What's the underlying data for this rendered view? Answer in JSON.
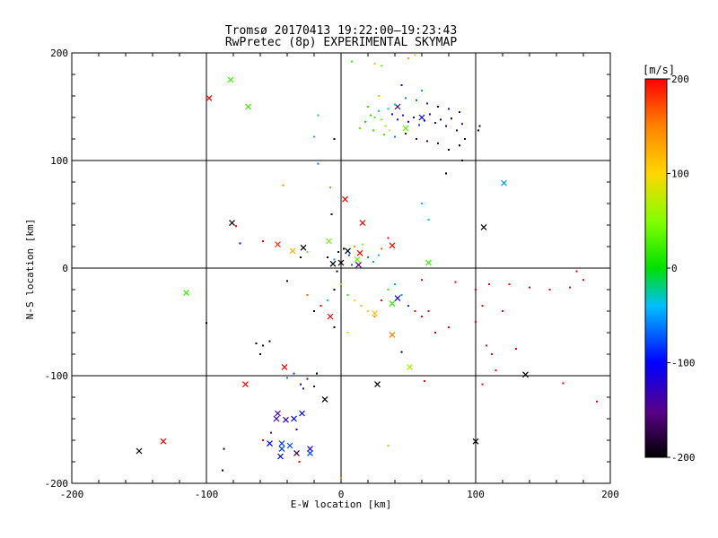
{
  "header": {
    "title": "Tromsø 20170413 19:22:00–19:23:43",
    "subtitle": "RwPretec (8p) EXPERIMENTAL SKYMAP"
  },
  "colorbar": {
    "unit_label": "[m/s]",
    "ticks": [
      200,
      100,
      0,
      -100,
      -200
    ],
    "range": [
      -200,
      200
    ]
  },
  "chart_data": {
    "type": "scatter",
    "title": "RwPretec (8p) EXPERIMENTAL SKYMAP",
    "xlabel": "E-W location [km]",
    "ylabel": "N-S location [km]",
    "xlim": [
      -200,
      200
    ],
    "ylim": [
      -200,
      200
    ],
    "xticks": [
      -200,
      -100,
      0,
      100,
      200
    ],
    "yticks": [
      -200,
      -100,
      0,
      100,
      200
    ],
    "grid": true,
    "color_scale": "rainbow, velocity [m/s] from -200 (black) through blue, cyan, green, yellow to 200 (red)",
    "series": [
      {
        "marker": "x",
        "points": [
          [
            -98,
            158,
            200
          ],
          [
            -82,
            175,
            20
          ],
          [
            -69,
            150,
            20
          ],
          [
            121,
            79,
            -50
          ],
          [
            -81,
            42,
            -200
          ],
          [
            -47,
            22,
            180
          ],
          [
            -36,
            16,
            120
          ],
          [
            -28,
            19,
            -200
          ],
          [
            3,
            64,
            200
          ],
          [
            16,
            42,
            200
          ],
          [
            38,
            21,
            200
          ],
          [
            -9,
            25,
            40
          ],
          [
            5,
            16,
            -200
          ],
          [
            14,
            14,
            200
          ],
          [
            12,
            8,
            40
          ],
          [
            0,
            5,
            -200
          ],
          [
            -6,
            4,
            -200
          ],
          [
            13,
            3,
            -160
          ],
          [
            65,
            5,
            20
          ],
          [
            106,
            38,
            -200
          ],
          [
            -115,
            -23,
            20
          ],
          [
            42,
            -28,
            -120
          ],
          [
            38,
            -33,
            20
          ],
          [
            -8,
            -45,
            200
          ],
          [
            25,
            -42,
            110
          ],
          [
            38,
            -62,
            150
          ],
          [
            51,
            -92,
            60
          ],
          [
            -42,
            -92,
            200
          ],
          [
            -71,
            -108,
            200
          ],
          [
            -12,
            -122,
            -200
          ],
          [
            27,
            -108,
            -200
          ],
          [
            137,
            -99,
            -200
          ],
          [
            -132,
            -161,
            200
          ],
          [
            -150,
            -170,
            -200
          ],
          [
            100,
            -161,
            -200
          ],
          [
            -47,
            -135,
            -140
          ],
          [
            -41,
            -141,
            -130
          ],
          [
            -48,
            -140,
            -140
          ],
          [
            -35,
            -140,
            -100
          ],
          [
            -29,
            -135,
            -100
          ],
          [
            -53,
            -163,
            -100
          ],
          [
            -44,
            -163,
            -80
          ],
          [
            -38,
            -165,
            -80
          ],
          [
            -44,
            -168,
            -80
          ],
          [
            -45,
            -175,
            -100
          ],
          [
            -33,
            -172,
            -170
          ],
          [
            -23,
            -168,
            -120
          ],
          [
            -23,
            -172,
            -80
          ],
          [
            42,
            150,
            -160
          ],
          [
            48,
            130,
            30
          ],
          [
            60,
            140,
            -100
          ]
        ]
      },
      {
        "marker": "dot",
        "points": [
          [
            8,
            192,
            20
          ],
          [
            25,
            190,
            120
          ],
          [
            50,
            195,
            130
          ],
          [
            55,
            198,
            110
          ],
          [
            30,
            188,
            40
          ],
          [
            45,
            170,
            -110
          ],
          [
            60,
            165,
            -50
          ],
          [
            28,
            160,
            60
          ],
          [
            20,
            150,
            20
          ],
          [
            25,
            140,
            30
          ],
          [
            30,
            138,
            40
          ],
          [
            33,
            132,
            50
          ],
          [
            36,
            128,
            90
          ],
          [
            38,
            143,
            -100
          ],
          [
            42,
            138,
            -110
          ],
          [
            46,
            142,
            -140
          ],
          [
            50,
            136,
            -120
          ],
          [
            54,
            140,
            -110
          ],
          [
            58,
            133,
            -80
          ],
          [
            62,
            137,
            -100
          ],
          [
            66,
            143,
            -120
          ],
          [
            70,
            135,
            -160
          ],
          [
            74,
            138,
            -180
          ],
          [
            78,
            132,
            -170
          ],
          [
            82,
            139,
            -190
          ],
          [
            86,
            128,
            -170
          ],
          [
            90,
            134,
            -150
          ],
          [
            88,
            145,
            -120
          ],
          [
            80,
            148,
            -140
          ],
          [
            72,
            150,
            -100
          ],
          [
            64,
            153,
            -90
          ],
          [
            56,
            156,
            -70
          ],
          [
            48,
            158,
            -60
          ],
          [
            40,
            152,
            -40
          ],
          [
            35,
            148,
            -30
          ],
          [
            28,
            146,
            -20
          ],
          [
            22,
            142,
            10
          ],
          [
            18,
            136,
            0
          ],
          [
            14,
            130,
            30
          ],
          [
            24,
            128,
            20
          ],
          [
            32,
            124,
            20
          ],
          [
            40,
            122,
            -60
          ],
          [
            48,
            125,
            -120
          ],
          [
            56,
            120,
            -140
          ],
          [
            64,
            118,
            -160
          ],
          [
            72,
            116,
            -190
          ],
          [
            80,
            110,
            -200
          ],
          [
            88,
            114,
            -200
          ],
          [
            92,
            120,
            -180
          ],
          [
            102,
            128,
            -200
          ],
          [
            103,
            132,
            -200
          ],
          [
            90,
            100,
            -200
          ],
          [
            78,
            88,
            -200
          ],
          [
            -20,
            122,
            -40
          ],
          [
            -17,
            97,
            -60
          ],
          [
            -43,
            77,
            150
          ],
          [
            -17,
            142,
            -20
          ],
          [
            -5,
            120,
            -200
          ],
          [
            60,
            60,
            -40
          ],
          [
            65,
            45,
            -20
          ],
          [
            -7,
            50,
            -200
          ],
          [
            -78,
            39,
            200
          ],
          [
            -75,
            23,
            -100
          ],
          [
            -58,
            25,
            200
          ],
          [
            -25,
            15,
            40
          ],
          [
            -30,
            10,
            -200
          ],
          [
            -10,
            10,
            -200
          ],
          [
            -5,
            8,
            -50
          ],
          [
            -2,
            15,
            -200
          ],
          [
            2,
            18,
            -200
          ],
          [
            6,
            12,
            -80
          ],
          [
            10,
            20,
            140
          ],
          [
            16,
            22,
            60
          ],
          [
            20,
            10,
            -60
          ],
          [
            24,
            6,
            -50
          ],
          [
            28,
            12,
            -30
          ],
          [
            30,
            18,
            160
          ],
          [
            35,
            28,
            200
          ],
          [
            8,
            3,
            -70
          ],
          [
            -3,
            -3,
            -200
          ],
          [
            -40,
            -12,
            -200
          ],
          [
            -25,
            -25,
            160
          ],
          [
            -10,
            -30,
            -30
          ],
          [
            -5,
            -20,
            -200
          ],
          [
            0,
            -15,
            40
          ],
          [
            5,
            -25,
            20
          ],
          [
            10,
            -30,
            100
          ],
          [
            15,
            -35,
            120
          ],
          [
            20,
            -40,
            80
          ],
          [
            25,
            -45,
            150
          ],
          [
            30,
            -30,
            200
          ],
          [
            35,
            -20,
            20
          ],
          [
            40,
            -15,
            -20
          ],
          [
            45,
            -25,
            -50
          ],
          [
            50,
            -35,
            -80
          ],
          [
            55,
            -40,
            200
          ],
          [
            60,
            -45,
            200
          ],
          [
            65,
            -40,
            200
          ],
          [
            -15,
            -35,
            200
          ],
          [
            -20,
            -40,
            -200
          ],
          [
            -100,
            -51,
            -200
          ],
          [
            -63,
            -70,
            -200
          ],
          [
            -58,
            -72,
            -200
          ],
          [
            -53,
            -68,
            -200
          ],
          [
            -60,
            -80,
            -200
          ],
          [
            -30,
            -108,
            -100
          ],
          [
            -25,
            -103,
            -150
          ],
          [
            -20,
            -110,
            -120
          ],
          [
            -28,
            -112,
            -130
          ],
          [
            -18,
            -98,
            -200
          ],
          [
            -35,
            -98,
            -80
          ],
          [
            -40,
            -102,
            -60
          ],
          [
            -87,
            -168,
            -200
          ],
          [
            -88,
            -188,
            -200
          ],
          [
            -31,
            -180,
            200
          ],
          [
            -33,
            -150,
            -100
          ],
          [
            -52,
            -153,
            -140
          ],
          [
            -58,
            -160,
            200
          ],
          [
            35,
            -165,
            40
          ],
          [
            0,
            -195,
            140
          ],
          [
            60,
            -11,
            200
          ],
          [
            85,
            -13,
            200
          ],
          [
            100,
            -20,
            200
          ],
          [
            110,
            -15,
            200
          ],
          [
            125,
            -15,
            200
          ],
          [
            140,
            -18,
            200
          ],
          [
            155,
            -20,
            200
          ],
          [
            170,
            -18,
            200
          ],
          [
            175,
            -3,
            200
          ],
          [
            180,
            -11,
            200
          ],
          [
            105,
            -35,
            200
          ],
          [
            120,
            -40,
            200
          ],
          [
            100,
            -50,
            200
          ],
          [
            80,
            -55,
            200
          ],
          [
            70,
            -60,
            200
          ],
          [
            108,
            -72,
            200
          ],
          [
            115,
            -95,
            200
          ],
          [
            130,
            -75,
            200
          ],
          [
            165,
            -107,
            200
          ],
          [
            105,
            -108,
            200
          ],
          [
            190,
            -124,
            200
          ],
          [
            112,
            -80,
            200
          ],
          [
            -5,
            -55,
            -200
          ],
          [
            5,
            -60,
            80
          ],
          [
            45,
            -78,
            -200
          ],
          [
            62,
            -105,
            200
          ],
          [
            -8,
            75,
            150
          ]
        ]
      }
    ]
  }
}
